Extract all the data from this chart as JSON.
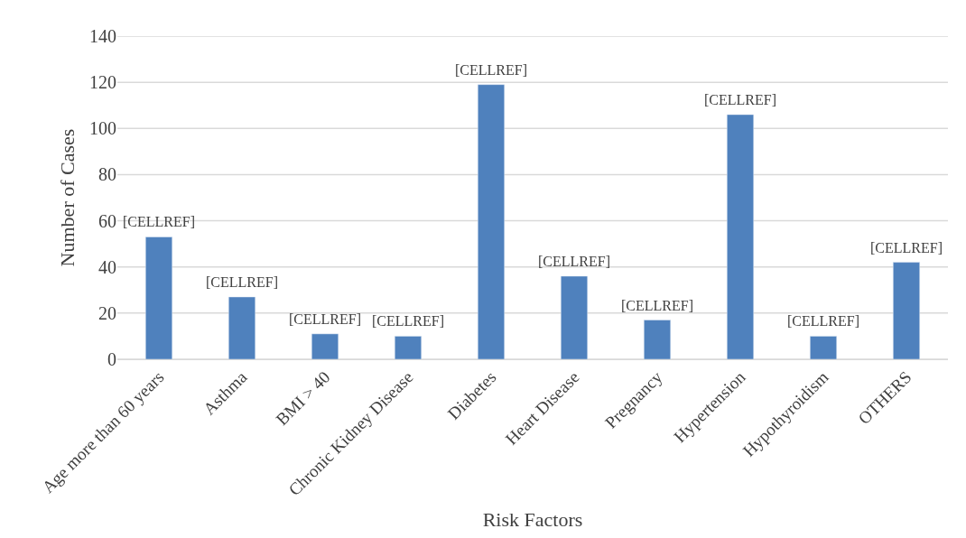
{
  "chart_data": {
    "type": "bar",
    "xlabel": "Risk Factors",
    "ylabel": "Number of Cases",
    "categories": [
      "Age more than 60 years",
      "Asthma",
      "BMI > 40",
      "Chronic Kidney Disease",
      "Diabetes",
      "Heart Disease",
      "Pregnancy",
      "Hypertension",
      "Hypothyroidism",
      "OTHERS"
    ],
    "values": [
      53,
      27,
      11,
      10,
      119,
      36,
      17,
      106,
      10,
      42
    ],
    "value_labels": [
      "[CELLREF]",
      "[CELLREF]",
      "[CELLREF]",
      "[CELLREF]",
      "[CELLREF]",
      "[CELLREF]",
      "[CELLREF]",
      "[CELLREF]",
      "[CELLREF]",
      "[CELLREF]"
    ],
    "color": "#4f81bd",
    "ylim": [
      0,
      140
    ],
    "yticks": [
      0,
      20,
      40,
      60,
      80,
      100,
      120,
      140
    ],
    "grid": "y"
  }
}
